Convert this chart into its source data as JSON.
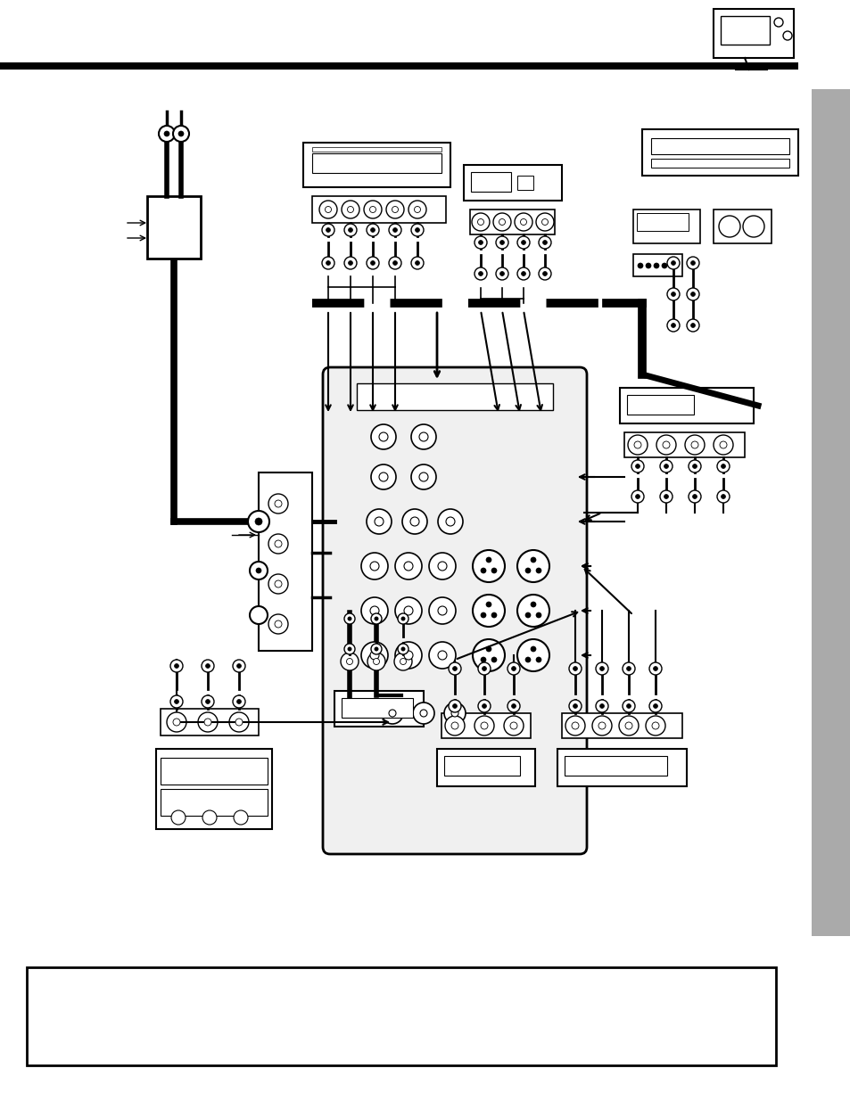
{
  "fig_width": 9.54,
  "fig_height": 12.35,
  "dpi": 100,
  "bg": "#ffffff",
  "black": "#000000",
  "gray": "#aaaaaa",
  "lightgray": "#dddddd"
}
